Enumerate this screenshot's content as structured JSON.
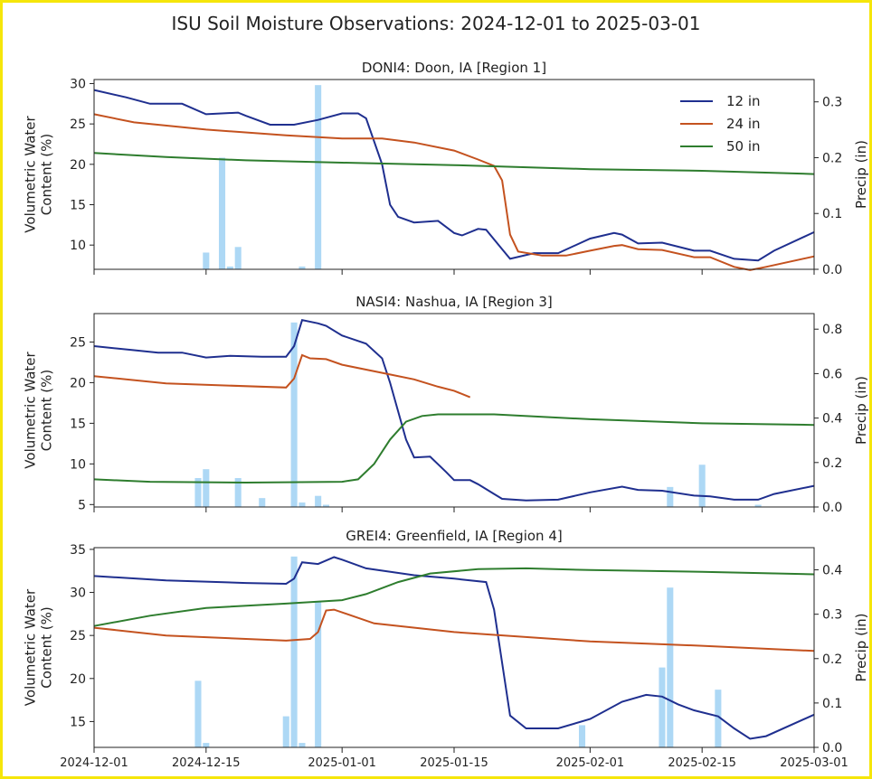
{
  "figure_title": "ISU Soil Moisture Observations: 2024-12-01 to 2025-03-01",
  "x_ticks": [
    "2024-12-01",
    "2024-12-15",
    "2025-01-01",
    "2025-01-15",
    "2025-02-01",
    "2025-02-15",
    "2025-03-01"
  ],
  "ylabel_left_line1": "Volumetric Water",
  "ylabel_left_line2": "Content (%)",
  "ylabel_right": "Precip (in)",
  "colors": {
    "12 in": "#1f2f8f",
    "24 in": "#c4521f",
    "50 in": "#2e7d2e",
    "precip": "#add8f5"
  },
  "legend": [
    "12 in",
    "24 in",
    "50 in"
  ],
  "chart_data": [
    {
      "type": "line",
      "title": "DONI4: Doon, IA [Region 1]",
      "xlim": [
        "2024-12-01",
        "2025-03-01"
      ],
      "ylim": [
        7,
        30.5
      ],
      "yticks": [
        10,
        15,
        20,
        25,
        30
      ],
      "y2lim": [
        0,
        0.34
      ],
      "y2ticks": [
        0.0,
        0.1,
        0.2,
        0.3
      ],
      "legend": "top-right",
      "series": [
        {
          "name": "12 in",
          "points": [
            [
              "2024-12-01",
              29.2
            ],
            [
              "2024-12-05",
              28.3
            ],
            [
              "2024-12-08",
              27.5
            ],
            [
              "2024-12-12",
              27.5
            ],
            [
              "2024-12-15",
              26.2
            ],
            [
              "2024-12-19",
              26.4
            ],
            [
              "2024-12-20",
              26.0
            ],
            [
              "2024-12-23",
              24.9
            ],
            [
              "2024-12-26",
              24.9
            ],
            [
              "2024-12-29",
              25.5
            ],
            [
              "2025-01-01",
              26.3
            ],
            [
              "2025-01-03",
              26.3
            ],
            [
              "2025-01-04",
              25.7
            ],
            [
              "2025-01-06",
              20.0
            ],
            [
              "2025-01-07",
              15.0
            ],
            [
              "2025-01-08",
              13.5
            ],
            [
              "2025-01-10",
              12.8
            ],
            [
              "2025-01-13",
              13.0
            ],
            [
              "2025-01-15",
              11.5
            ],
            [
              "2025-01-16",
              11.2
            ],
            [
              "2025-01-18",
              12.0
            ],
            [
              "2025-01-19",
              11.9
            ],
            [
              "2025-01-21",
              9.5
            ],
            [
              "2025-01-22",
              8.3
            ],
            [
              "2025-01-25",
              9.0
            ],
            [
              "2025-01-28",
              9.0
            ],
            [
              "2025-02-01",
              10.8
            ],
            [
              "2025-02-04",
              11.5
            ],
            [
              "2025-02-05",
              11.3
            ],
            [
              "2025-02-07",
              10.2
            ],
            [
              "2025-02-10",
              10.3
            ],
            [
              "2025-02-14",
              9.3
            ],
            [
              "2025-02-16",
              9.3
            ],
            [
              "2025-02-19",
              8.3
            ],
            [
              "2025-02-22",
              8.1
            ],
            [
              "2025-02-24",
              9.3
            ],
            [
              "2025-03-01",
              11.6
            ]
          ]
        },
        {
          "name": "24 in",
          "points": [
            [
              "2024-12-01",
              26.2
            ],
            [
              "2024-12-06",
              25.2
            ],
            [
              "2024-12-15",
              24.3
            ],
            [
              "2024-12-25",
              23.6
            ],
            [
              "2025-01-01",
              23.2
            ],
            [
              "2025-01-06",
              23.2
            ],
            [
              "2025-01-10",
              22.7
            ],
            [
              "2025-01-15",
              21.7
            ],
            [
              "2025-01-18",
              20.6
            ],
            [
              "2025-01-20",
              19.8
            ],
            [
              "2025-01-21",
              18.0
            ],
            [
              "2025-01-22",
              11.3
            ],
            [
              "2025-01-23",
              9.2
            ],
            [
              "2025-01-26",
              8.7
            ],
            [
              "2025-01-29",
              8.7
            ],
            [
              "2025-02-01",
              9.3
            ],
            [
              "2025-02-04",
              9.9
            ],
            [
              "2025-02-05",
              10.0
            ],
            [
              "2025-02-07",
              9.5
            ],
            [
              "2025-02-10",
              9.4
            ],
            [
              "2025-02-14",
              8.5
            ],
            [
              "2025-02-16",
              8.5
            ],
            [
              "2025-02-19",
              7.3
            ],
            [
              "2025-02-21",
              6.9
            ],
            [
              "2025-02-23",
              7.3
            ],
            [
              "2025-03-01",
              8.6
            ]
          ]
        },
        {
          "name": "50 in",
          "points": [
            [
              "2024-12-01",
              21.4
            ],
            [
              "2024-12-10",
              20.9
            ],
            [
              "2024-12-20",
              20.5
            ],
            [
              "2025-01-01",
              20.2
            ],
            [
              "2025-01-15",
              19.9
            ],
            [
              "2025-02-01",
              19.4
            ],
            [
              "2025-02-15",
              19.2
            ],
            [
              "2025-03-01",
              18.8
            ]
          ]
        }
      ],
      "precip": [
        [
          "2024-12-15",
          0.03
        ],
        [
          "2024-12-17",
          0.2
        ],
        [
          "2024-12-18",
          0.005
        ],
        [
          "2024-12-19",
          0.04
        ],
        [
          "2024-12-27",
          0.005
        ],
        [
          "2024-12-29",
          0.33
        ]
      ]
    },
    {
      "type": "line",
      "title": "NASI4: Nashua, IA [Region 3]",
      "xlim": [
        "2024-12-01",
        "2025-03-01"
      ],
      "ylim": [
        4.7,
        28.5
      ],
      "yticks": [
        5,
        10,
        15,
        20,
        25
      ],
      "y2lim": [
        0,
        0.87
      ],
      "y2ticks": [
        0.0,
        0.2,
        0.4,
        0.6,
        0.8
      ],
      "series": [
        {
          "name": "12 in",
          "points": [
            [
              "2024-12-01",
              24.5
            ],
            [
              "2024-12-06",
              24.0
            ],
            [
              "2024-12-09",
              23.7
            ],
            [
              "2024-12-12",
              23.7
            ],
            [
              "2024-12-15",
              23.1
            ],
            [
              "2024-12-18",
              23.3
            ],
            [
              "2024-12-22",
              23.2
            ],
            [
              "2024-12-25",
              23.2
            ],
            [
              "2024-12-26",
              24.5
            ],
            [
              "2024-12-27",
              27.7
            ],
            [
              "2024-12-29",
              27.3
            ],
            [
              "2024-12-30",
              27.0
            ],
            [
              "2025-01-01",
              25.8
            ],
            [
              "2025-01-04",
              24.8
            ],
            [
              "2025-01-06",
              23.0
            ],
            [
              "2025-01-07",
              20.0
            ],
            [
              "2025-01-09",
              13.0
            ],
            [
              "2025-01-10",
              10.8
            ],
            [
              "2025-01-12",
              10.9
            ],
            [
              "2025-01-14",
              9.0
            ],
            [
              "2025-01-15",
              8.0
            ],
            [
              "2025-01-17",
              8.0
            ],
            [
              "2025-01-18",
              7.5
            ],
            [
              "2025-01-20",
              6.3
            ],
            [
              "2025-01-21",
              5.7
            ],
            [
              "2025-01-24",
              5.5
            ],
            [
              "2025-01-28",
              5.6
            ],
            [
              "2025-02-01",
              6.5
            ],
            [
              "2025-02-05",
              7.2
            ],
            [
              "2025-02-07",
              6.8
            ],
            [
              "2025-02-10",
              6.7
            ],
            [
              "2025-02-14",
              6.1
            ],
            [
              "2025-02-16",
              6.0
            ],
            [
              "2025-02-19",
              5.6
            ],
            [
              "2025-02-22",
              5.6
            ],
            [
              "2025-02-24",
              6.3
            ],
            [
              "2025-03-01",
              7.3
            ]
          ]
        },
        {
          "name": "24 in",
          "points": [
            [
              "2024-12-01",
              20.8
            ],
            [
              "2024-12-10",
              19.9
            ],
            [
              "2024-12-25",
              19.4
            ],
            [
              "2024-12-26",
              20.5
            ],
            [
              "2024-12-27",
              23.4
            ],
            [
              "2024-12-28",
              23.0
            ],
            [
              "2024-12-30",
              22.9
            ],
            [
              "2025-01-01",
              22.2
            ],
            [
              "2025-01-07",
              21.0
            ],
            [
              "2025-01-10",
              20.4
            ],
            [
              "2025-01-13",
              19.5
            ],
            [
              "2025-01-15",
              19.0
            ],
            [
              "2025-01-17",
              18.2
            ]
          ]
        },
        {
          "name": "50 in",
          "points": [
            [
              "2024-12-01",
              8.1
            ],
            [
              "2024-12-08",
              7.8
            ],
            [
              "2024-12-20",
              7.7
            ],
            [
              "2025-01-01",
              7.8
            ],
            [
              "2025-01-03",
              8.1
            ],
            [
              "2025-01-05",
              10.0
            ],
            [
              "2025-01-07",
              13.0
            ],
            [
              "2025-01-09",
              15.2
            ],
            [
              "2025-01-11",
              15.9
            ],
            [
              "2025-01-13",
              16.1
            ],
            [
              "2025-01-20",
              16.1
            ],
            [
              "2025-02-01",
              15.5
            ],
            [
              "2025-02-15",
              15.0
            ],
            [
              "2025-03-01",
              14.8
            ]
          ]
        }
      ],
      "precip": [
        [
          "2024-12-14",
          0.13
        ],
        [
          "2024-12-15",
          0.17
        ],
        [
          "2024-12-19",
          0.13
        ],
        [
          "2024-12-22",
          0.04
        ],
        [
          "2024-12-26",
          0.83
        ],
        [
          "2024-12-27",
          0.02
        ],
        [
          "2024-12-29",
          0.05
        ],
        [
          "2024-12-30",
          0.01
        ],
        [
          "2025-02-11",
          0.09
        ],
        [
          "2025-02-15",
          0.19
        ],
        [
          "2025-02-22",
          0.01
        ]
      ]
    },
    {
      "type": "line",
      "title": "GREI4: Greenfield, IA [Region 4]",
      "xlim": [
        "2024-12-01",
        "2025-03-01"
      ],
      "ylim": [
        12,
        35.2
      ],
      "yticks": [
        15,
        20,
        25,
        30,
        35
      ],
      "y2lim": [
        0,
        0.45
      ],
      "y2ticks": [
        0.0,
        0.1,
        0.2,
        0.3,
        0.4
      ],
      "series": [
        {
          "name": "12 in",
          "points": [
            [
              "2024-12-01",
              31.9
            ],
            [
              "2024-12-10",
              31.4
            ],
            [
              "2024-12-20",
              31.1
            ],
            [
              "2024-12-25",
              31.0
            ],
            [
              "2024-12-26",
              31.6
            ],
            [
              "2024-12-27",
              33.5
            ],
            [
              "2024-12-29",
              33.3
            ],
            [
              "2024-12-31",
              34.1
            ],
            [
              "2025-01-01",
              33.8
            ],
            [
              "2025-01-04",
              32.8
            ],
            [
              "2025-01-10",
              32.0
            ],
            [
              "2025-01-15",
              31.6
            ],
            [
              "2025-01-19",
              31.2
            ],
            [
              "2025-01-20",
              28.0
            ],
            [
              "2025-01-22",
              15.7
            ],
            [
              "2025-01-24",
              14.2
            ],
            [
              "2025-01-28",
              14.2
            ],
            [
              "2025-02-01",
              15.3
            ],
            [
              "2025-02-05",
              17.3
            ],
            [
              "2025-02-08",
              18.1
            ],
            [
              "2025-02-10",
              17.9
            ],
            [
              "2025-02-12",
              17.0
            ],
            [
              "2025-02-14",
              16.3
            ],
            [
              "2025-02-17",
              15.6
            ],
            [
              "2025-02-19",
              14.2
            ],
            [
              "2025-02-21",
              13.0
            ],
            [
              "2025-02-23",
              13.3
            ],
            [
              "2025-03-01",
              15.8
            ]
          ]
        },
        {
          "name": "24 in",
          "points": [
            [
              "2024-12-01",
              25.9
            ],
            [
              "2024-12-10",
              25.0
            ],
            [
              "2024-12-25",
              24.4
            ],
            [
              "2024-12-28",
              24.6
            ],
            [
              "2024-12-29",
              25.4
            ],
            [
              "2024-12-30",
              27.9
            ],
            [
              "2024-12-31",
              28.0
            ],
            [
              "2025-01-05",
              26.4
            ],
            [
              "2025-01-15",
              25.4
            ],
            [
              "2025-02-01",
              24.3
            ],
            [
              "2025-02-15",
              23.8
            ],
            [
              "2025-03-01",
              23.2
            ]
          ]
        },
        {
          "name": "50 in",
          "points": [
            [
              "2024-12-01",
              26.1
            ],
            [
              "2024-12-08",
              27.3
            ],
            [
              "2024-12-15",
              28.2
            ],
            [
              "2024-12-25",
              28.7
            ],
            [
              "2025-01-01",
              29.1
            ],
            [
              "2025-01-04",
              29.8
            ],
            [
              "2025-01-08",
              31.2
            ],
            [
              "2025-01-12",
              32.2
            ],
            [
              "2025-01-18",
              32.7
            ],
            [
              "2025-01-24",
              32.8
            ],
            [
              "2025-02-01",
              32.6
            ],
            [
              "2025-02-15",
              32.4
            ],
            [
              "2025-03-01",
              32.1
            ]
          ]
        }
      ],
      "precip": [
        [
          "2024-12-14",
          0.15
        ],
        [
          "2024-12-15",
          0.01
        ],
        [
          "2024-12-25",
          0.07
        ],
        [
          "2024-12-26",
          0.43
        ],
        [
          "2024-12-27",
          0.01
        ],
        [
          "2024-12-29",
          0.33
        ],
        [
          "2025-01-31",
          0.05
        ],
        [
          "2025-02-10",
          0.18
        ],
        [
          "2025-02-11",
          0.36
        ],
        [
          "2025-02-17",
          0.13
        ]
      ]
    }
  ]
}
